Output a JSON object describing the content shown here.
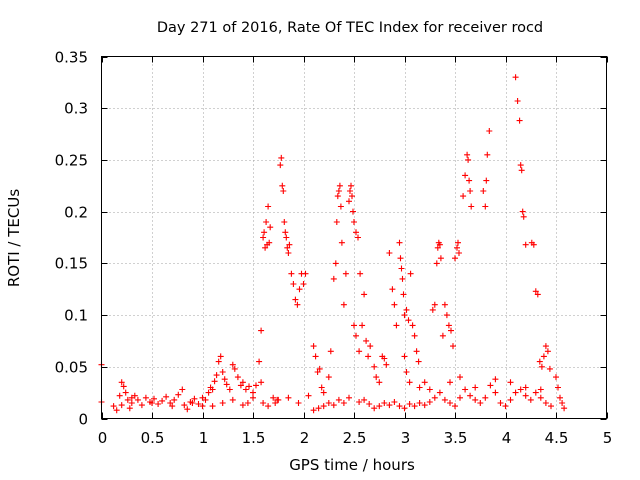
{
  "chart_data": {
    "type": "scatter",
    "title": "Day 271 of 2016, Rate Of TEC Index for receiver rocd",
    "xlabel": "GPS time / hours",
    "ylabel": "ROTI / TECUs",
    "xlim": [
      0,
      5
    ],
    "ylim": [
      0,
      0.35
    ],
    "xticks": [
      0,
      0.5,
      1,
      1.5,
      2,
      2.5,
      3,
      3.5,
      4,
      4.5,
      5
    ],
    "xtick_labels": [
      "0",
      "0.5",
      "1",
      "1.5",
      "2",
      "2.5",
      "3",
      "3.5",
      "4",
      "4.5",
      "5"
    ],
    "yticks": [
      0,
      0.05,
      0.1,
      0.15,
      0.2,
      0.25,
      0.3,
      0.35
    ],
    "ytick_labels": [
      "0",
      "0.05",
      "0.1",
      "0.15",
      "0.2",
      "0.25",
      "0.3",
      "0.35"
    ],
    "grid": true,
    "marker": "+",
    "color": "#ff0000",
    "series": [
      {
        "name": "ROTI",
        "points": [
          [
            0.0,
            0.016
          ],
          [
            0.0,
            0.052
          ],
          [
            0.12,
            0.012
          ],
          [
            0.15,
            0.008
          ],
          [
            0.18,
            0.022
          ],
          [
            0.2,
            0.035
          ],
          [
            0.22,
            0.031
          ],
          [
            0.24,
            0.025
          ],
          [
            0.26,
            0.018
          ],
          [
            0.28,
            0.01
          ],
          [
            0.3,
            0.015
          ],
          [
            0.33,
            0.022
          ],
          [
            0.36,
            0.018
          ],
          [
            0.4,
            0.013
          ],
          [
            0.44,
            0.02
          ],
          [
            0.48,
            0.016
          ],
          [
            0.52,
            0.019
          ],
          [
            0.56,
            0.014
          ],
          [
            0.6,
            0.017
          ],
          [
            0.64,
            0.021
          ],
          [
            0.68,
            0.015
          ],
          [
            0.72,
            0.018
          ],
          [
            0.76,
            0.023
          ],
          [
            0.8,
            0.028
          ],
          [
            0.82,
            0.013
          ],
          [
            0.85,
            0.009
          ],
          [
            0.88,
            0.016
          ],
          [
            0.92,
            0.019
          ],
          [
            0.96,
            0.014
          ],
          [
            1.0,
            0.012
          ],
          [
            1.03,
            0.018
          ],
          [
            1.06,
            0.025
          ],
          [
            1.08,
            0.03
          ],
          [
            1.1,
            0.028
          ],
          [
            1.12,
            0.036
          ],
          [
            1.14,
            0.042
          ],
          [
            1.16,
            0.055
          ],
          [
            1.18,
            0.06
          ],
          [
            1.2,
            0.045
          ],
          [
            1.22,
            0.038
          ],
          [
            1.24,
            0.033
          ],
          [
            1.27,
            0.028
          ],
          [
            1.3,
            0.052
          ],
          [
            1.32,
            0.048
          ],
          [
            1.35,
            0.04
          ],
          [
            1.38,
            0.032
          ],
          [
            1.4,
            0.035
          ],
          [
            1.43,
            0.028
          ],
          [
            1.46,
            0.031
          ],
          [
            1.5,
            0.025
          ],
          [
            1.53,
            0.032
          ],
          [
            1.56,
            0.055
          ],
          [
            1.58,
            0.085
          ],
          [
            1.58,
            0.035
          ],
          [
            1.6,
            0.175
          ],
          [
            1.61,
            0.18
          ],
          [
            1.62,
            0.165
          ],
          [
            1.63,
            0.19
          ],
          [
            1.64,
            0.168
          ],
          [
            1.65,
            0.205
          ],
          [
            1.66,
            0.17
          ],
          [
            1.67,
            0.185
          ],
          [
            1.7,
            0.02
          ],
          [
            1.72,
            0.015
          ],
          [
            1.74,
            0.018
          ],
          [
            1.77,
            0.245
          ],
          [
            1.78,
            0.252
          ],
          [
            1.79,
            0.225
          ],
          [
            1.8,
            0.22
          ],
          [
            1.81,
            0.19
          ],
          [
            1.82,
            0.18
          ],
          [
            1.83,
            0.175
          ],
          [
            1.84,
            0.165
          ],
          [
            1.85,
            0.16
          ],
          [
            1.86,
            0.168
          ],
          [
            1.88,
            0.14
          ],
          [
            1.9,
            0.13
          ],
          [
            1.92,
            0.115
          ],
          [
            1.94,
            0.11
          ],
          [
            1.96,
            0.125
          ],
          [
            1.98,
            0.14
          ],
          [
            2.0,
            0.13
          ],
          [
            2.02,
            0.14
          ],
          [
            2.1,
            0.07
          ],
          [
            2.12,
            0.06
          ],
          [
            2.14,
            0.045
          ],
          [
            2.16,
            0.048
          ],
          [
            2.18,
            0.03
          ],
          [
            2.2,
            0.025
          ],
          [
            2.25,
            0.04
          ],
          [
            2.27,
            0.065
          ],
          [
            2.3,
            0.135
          ],
          [
            2.32,
            0.15
          ],
          [
            2.33,
            0.19
          ],
          [
            2.34,
            0.215
          ],
          [
            2.35,
            0.22
          ],
          [
            2.36,
            0.225
          ],
          [
            2.37,
            0.205
          ],
          [
            2.38,
            0.17
          ],
          [
            2.4,
            0.11
          ],
          [
            2.42,
            0.14
          ],
          [
            2.45,
            0.21
          ],
          [
            2.46,
            0.22
          ],
          [
            2.47,
            0.225
          ],
          [
            2.48,
            0.215
          ],
          [
            2.49,
            0.2
          ],
          [
            2.5,
            0.19
          ],
          [
            2.52,
            0.18
          ],
          [
            2.54,
            0.175
          ],
          [
            2.56,
            0.14
          ],
          [
            2.58,
            0.09
          ],
          [
            2.6,
            0.12
          ],
          [
            2.62,
            0.075
          ],
          [
            2.64,
            0.06
          ],
          [
            2.66,
            0.07
          ],
          [
            2.5,
            0.09
          ],
          [
            2.52,
            0.08
          ],
          [
            2.55,
            0.065
          ],
          [
            2.7,
            0.05
          ],
          [
            2.72,
            0.04
          ],
          [
            2.75,
            0.035
          ],
          [
            2.78,
            0.06
          ],
          [
            2.8,
            0.058
          ],
          [
            2.82,
            0.052
          ],
          [
            2.85,
            0.16
          ],
          [
            2.88,
            0.125
          ],
          [
            2.9,
            0.11
          ],
          [
            2.92,
            0.09
          ],
          [
            2.95,
            0.17
          ],
          [
            2.96,
            0.155
          ],
          [
            2.97,
            0.145
          ],
          [
            2.98,
            0.135
          ],
          [
            2.99,
            0.12
          ],
          [
            3.0,
            0.1
          ],
          [
            3.02,
            0.105
          ],
          [
            3.04,
            0.095
          ],
          [
            3.06,
            0.14
          ],
          [
            3.08,
            0.09
          ],
          [
            3.1,
            0.08
          ],
          [
            3.12,
            0.065
          ],
          [
            3.14,
            0.055
          ],
          [
            3.0,
            0.06
          ],
          [
            3.02,
            0.045
          ],
          [
            3.05,
            0.035
          ],
          [
            3.28,
            0.105
          ],
          [
            3.3,
            0.11
          ],
          [
            3.32,
            0.15
          ],
          [
            3.33,
            0.165
          ],
          [
            3.34,
            0.17
          ],
          [
            3.35,
            0.168
          ],
          [
            3.36,
            0.155
          ],
          [
            3.38,
            0.08
          ],
          [
            3.4,
            0.11
          ],
          [
            3.42,
            0.1
          ],
          [
            3.44,
            0.09
          ],
          [
            3.46,
            0.085
          ],
          [
            3.48,
            0.07
          ],
          [
            3.5,
            0.155
          ],
          [
            3.52,
            0.165
          ],
          [
            3.53,
            0.17
          ],
          [
            3.54,
            0.16
          ],
          [
            3.58,
            0.215
          ],
          [
            3.6,
            0.235
          ],
          [
            3.62,
            0.255
          ],
          [
            3.63,
            0.25
          ],
          [
            3.64,
            0.23
          ],
          [
            3.65,
            0.22
          ],
          [
            3.66,
            0.205
          ],
          [
            3.78,
            0.22
          ],
          [
            3.8,
            0.205
          ],
          [
            3.81,
            0.23
          ],
          [
            3.82,
            0.255
          ],
          [
            3.84,
            0.278
          ],
          [
            4.1,
            0.33
          ],
          [
            4.12,
            0.307
          ],
          [
            4.14,
            0.288
          ],
          [
            4.15,
            0.245
          ],
          [
            4.16,
            0.24
          ],
          [
            4.17,
            0.2
          ],
          [
            4.18,
            0.195
          ],
          [
            4.2,
            0.168
          ],
          [
            4.26,
            0.17
          ],
          [
            4.28,
            0.168
          ],
          [
            4.3,
            0.123
          ],
          [
            4.32,
            0.12
          ],
          [
            4.34,
            0.055
          ],
          [
            4.36,
            0.05
          ],
          [
            4.38,
            0.06
          ],
          [
            4.4,
            0.07
          ],
          [
            4.42,
            0.065
          ],
          [
            4.44,
            0.048
          ],
          [
            4.5,
            0.04
          ],
          [
            4.52,
            0.03
          ],
          [
            4.54,
            0.02
          ],
          [
            4.56,
            0.015
          ],
          [
            4.58,
            0.01
          ],
          [
            1.6,
            0.015
          ],
          [
            1.65,
            0.012
          ],
          [
            1.75,
            0.018
          ],
          [
            1.85,
            0.02
          ],
          [
            1.95,
            0.015
          ],
          [
            2.05,
            0.022
          ],
          [
            2.1,
            0.008
          ],
          [
            2.15,
            0.01
          ],
          [
            2.2,
            0.012
          ],
          [
            2.25,
            0.015
          ],
          [
            2.3,
            0.013
          ],
          [
            2.35,
            0.018
          ],
          [
            2.4,
            0.015
          ],
          [
            2.45,
            0.02
          ],
          [
            2.55,
            0.016
          ],
          [
            2.6,
            0.018
          ],
          [
            2.65,
            0.014
          ],
          [
            2.7,
            0.01
          ],
          [
            2.75,
            0.012
          ],
          [
            2.8,
            0.015
          ],
          [
            2.85,
            0.013
          ],
          [
            2.9,
            0.016
          ],
          [
            2.95,
            0.012
          ],
          [
            3.0,
            0.01
          ],
          [
            3.05,
            0.014
          ],
          [
            3.1,
            0.012
          ],
          [
            3.15,
            0.015
          ],
          [
            3.2,
            0.013
          ],
          [
            3.25,
            0.016
          ],
          [
            3.3,
            0.02
          ],
          [
            3.35,
            0.025
          ],
          [
            3.4,
            0.018
          ],
          [
            3.45,
            0.015
          ],
          [
            3.5,
            0.012
          ],
          [
            3.55,
            0.02
          ],
          [
            3.6,
            0.028
          ],
          [
            3.65,
            0.022
          ],
          [
            3.7,
            0.018
          ],
          [
            3.75,
            0.015
          ],
          [
            3.8,
            0.02
          ],
          [
            3.85,
            0.032
          ],
          [
            3.9,
            0.038
          ],
          [
            3.95,
            0.015
          ],
          [
            4.0,
            0.012
          ],
          [
            4.05,
            0.018
          ],
          [
            4.1,
            0.025
          ],
          [
            4.15,
            0.028
          ],
          [
            4.2,
            0.022
          ],
          [
            4.25,
            0.018
          ],
          [
            4.3,
            0.025
          ],
          [
            4.35,
            0.02
          ],
          [
            4.4,
            0.015
          ],
          [
            4.45,
            0.012
          ],
          [
            1.5,
            0.02
          ],
          [
            1.45,
            0.015
          ],
          [
            1.4,
            0.013
          ],
          [
            1.3,
            0.018
          ],
          [
            1.2,
            0.015
          ],
          [
            1.1,
            0.012
          ],
          [
            1.0,
            0.02
          ],
          [
            0.9,
            0.015
          ],
          [
            0.7,
            0.012
          ],
          [
            0.5,
            0.015
          ],
          [
            0.3,
            0.02
          ],
          [
            0.2,
            0.013
          ],
          [
            3.15,
            0.03
          ],
          [
            3.2,
            0.035
          ],
          [
            3.25,
            0.028
          ],
          [
            3.45,
            0.035
          ],
          [
            3.55,
            0.04
          ],
          [
            4.05,
            0.035
          ],
          [
            4.2,
            0.03
          ],
          [
            4.35,
            0.028
          ],
          [
            3.9,
            0.025
          ],
          [
            3.7,
            0.03
          ]
        ]
      }
    ]
  }
}
